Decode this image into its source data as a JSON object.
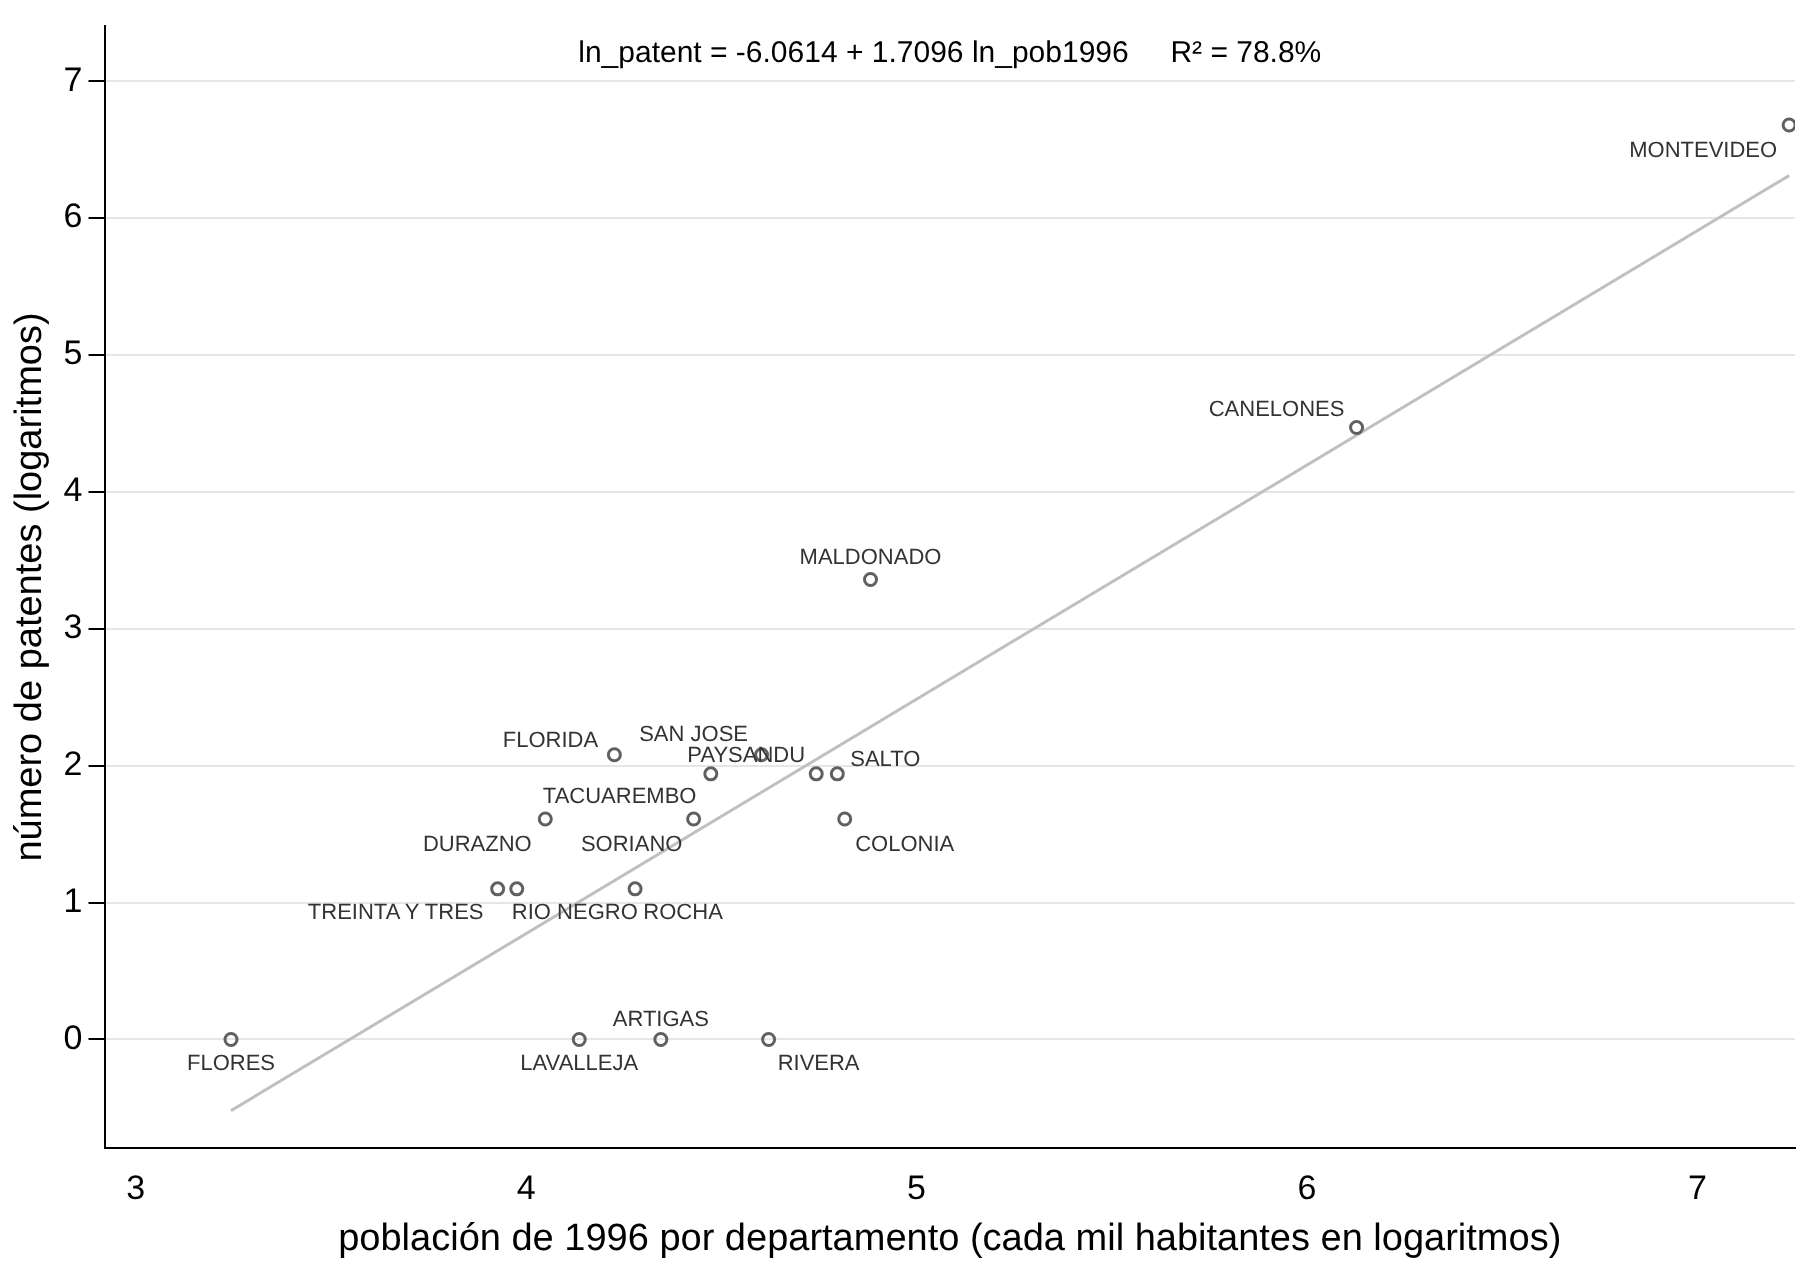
{
  "chart_data": {
    "type": "scatter",
    "title": "ln_patent = -6.0614 + 1.7096 ln_pob1996     R² = 78.8%",
    "xlabel": "población de 1996 por departamento (cada mil habitantes en logaritmos)",
    "ylabel": "número de patentes (logaritmos)",
    "xlim": [
      2.92,
      7.25
    ],
    "ylim": [
      -0.79,
      7.4
    ],
    "xticks": [
      3,
      4,
      5,
      6,
      7
    ],
    "yticks": [
      0,
      1,
      2,
      3,
      4,
      5,
      6,
      7
    ],
    "grid": "y",
    "legend": false,
    "marker": "circle",
    "series": [
      {
        "type": "scatter",
        "color": "#606060",
        "x": [
          7.235,
          6.127,
          4.882,
          4.226,
          4.603,
          4.473,
          4.743,
          4.797,
          4.049,
          4.429,
          4.816,
          3.927,
          3.976,
          4.279,
          3.244,
          4.136,
          4.345,
          4.621
        ],
        "values": [
          6.68,
          4.47,
          3.36,
          2.08,
          2.08,
          1.94,
          1.94,
          1.94,
          1.61,
          1.61,
          1.61,
          1.1,
          1.1,
          1.1,
          0,
          0,
          0,
          0
        ]
      },
      {
        "type": "line",
        "color": "#c0c0c0",
        "marker": "none",
        "x": [
          3.244,
          7.235
        ],
        "values": [
          -0.52,
          6.31
        ]
      }
    ],
    "annotations": [
      {
        "text": "MONTEVIDEO",
        "x": 7.235,
        "y": 6.68
      },
      {
        "text": "CANELONES",
        "x": 6.127,
        "y": 4.47
      },
      {
        "text": "MALDONADO",
        "x": 4.882,
        "y": 3.36
      },
      {
        "text": "FLORIDA",
        "x": 4.226,
        "y": 2.08
      },
      {
        "text": "SAN JOSE",
        "x": 4.603,
        "y": 2.08
      },
      {
        "text": "PAYSANDU",
        "x": 4.743,
        "y": 1.94
      },
      {
        "text": "SALTO",
        "x": 4.797,
        "y": 1.94
      },
      {
        "text": "TACUAREMBO",
        "x": 4.429,
        "y": 1.61
      },
      {
        "text": "DURAZNO",
        "x": 4.049,
        "y": 1.61
      },
      {
        "text": "SORIANO",
        "x": 4.429,
        "y": 1.61
      },
      {
        "text": "COLONIA",
        "x": 4.816,
        "y": 1.61
      },
      {
        "text": "TREINTA Y TRES",
        "x": 3.927,
        "y": 1.1
      },
      {
        "text": "RIO NEGRO",
        "x": 3.976,
        "y": 1.1
      },
      {
        "text": "ROCHA",
        "x": 4.279,
        "y": 1.1
      },
      {
        "text": "FLORES",
        "x": 3.244,
        "y": 0
      },
      {
        "text": "LAVALLEJA",
        "x": 4.136,
        "y": 0
      },
      {
        "text": "ARTIGAS",
        "x": 4.345,
        "y": 0
      },
      {
        "text": "RIVERA",
        "x": 4.621,
        "y": 0
      }
    ]
  }
}
